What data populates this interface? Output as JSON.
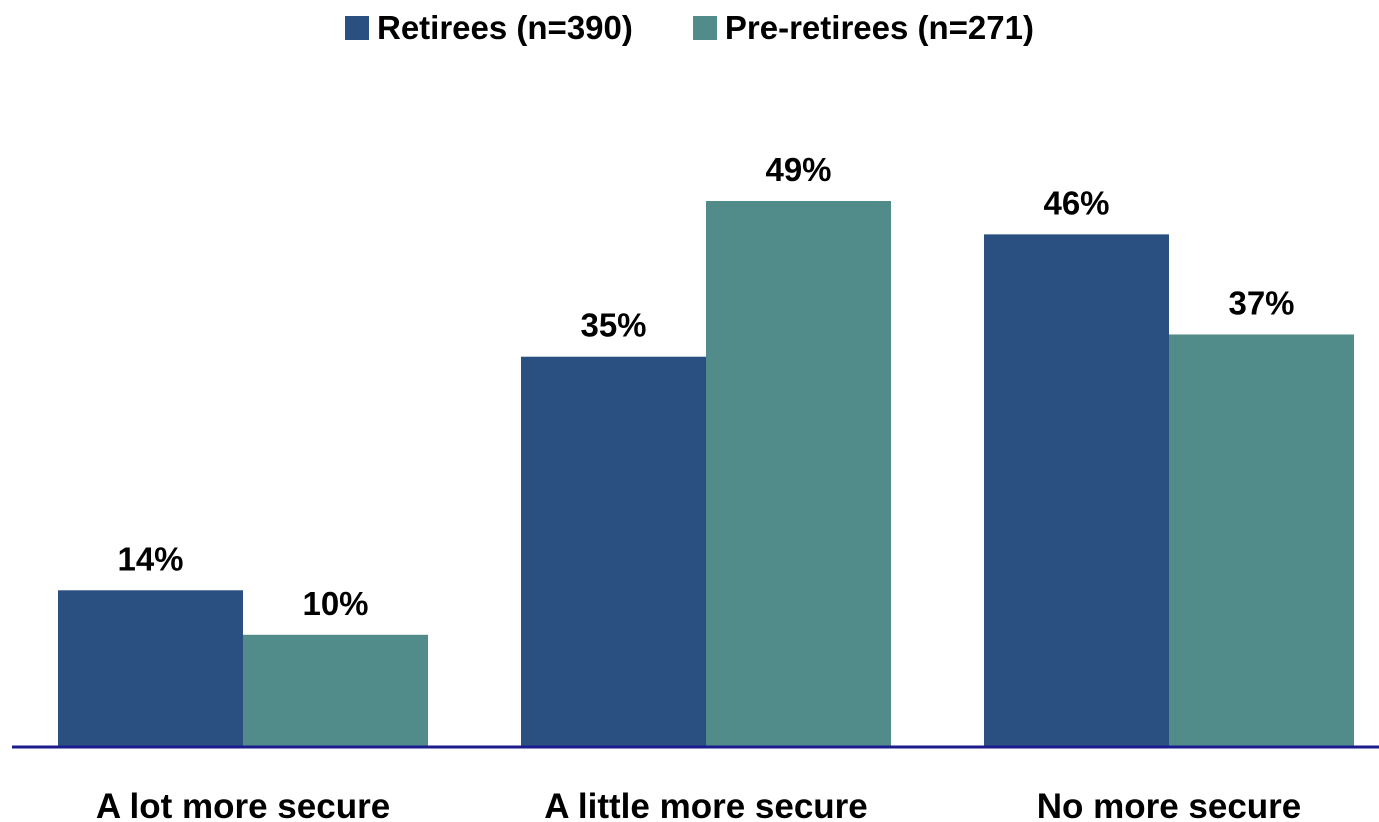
{
  "chart_data": {
    "type": "bar",
    "title": "",
    "xlabel": "",
    "ylabel": "",
    "categories": [
      "A lot more secure",
      "A little more secure",
      "No more secure"
    ],
    "series": [
      {
        "name": "Retirees (n=390)",
        "values": [
          14,
          35,
          46
        ],
        "labels": [
          "14%",
          "35%",
          "46%"
        ],
        "color": "#2a5082"
      },
      {
        "name": "Pre-retirees (n=271)",
        "values": [
          10,
          49,
          37
        ],
        "labels": [
          "10%",
          "49%",
          "37%"
        ],
        "color": "#518c8b"
      }
    ],
    "ylim": [
      0,
      49
    ],
    "grid": false,
    "legend_position": "top-center",
    "axis_color": "#1c1c8c"
  }
}
